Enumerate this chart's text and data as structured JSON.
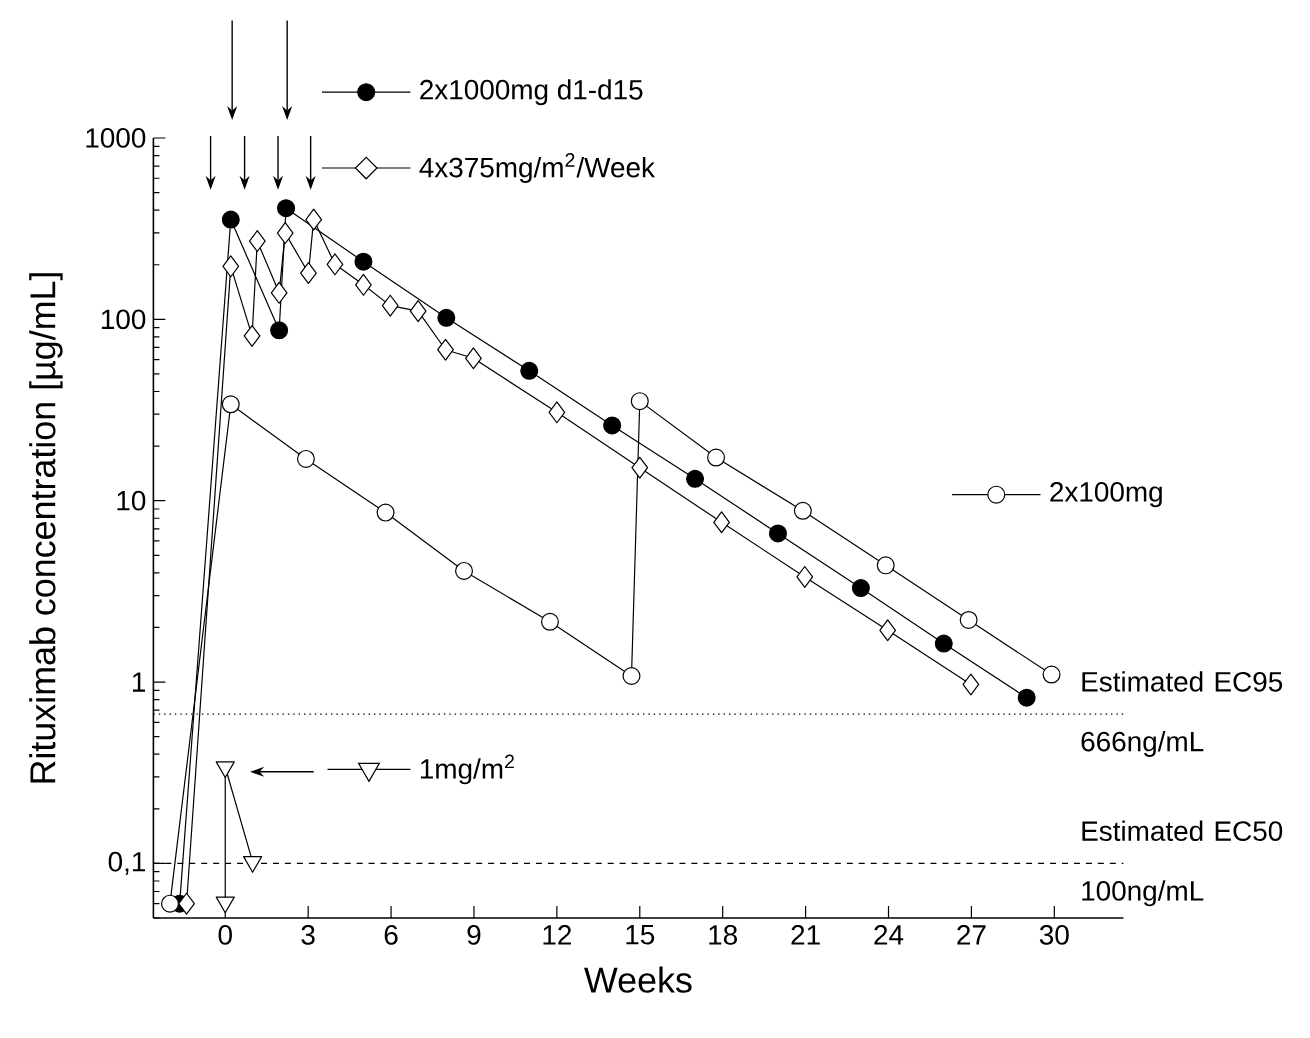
{
  "chart_data": {
    "type": "line",
    "xlabel": "Weeks",
    "ylabel": "Rituximab concentration [µg/mL]",
    "log": "y",
    "xlim": [
      -2.6,
      32.5
    ],
    "xticks": [
      0,
      3,
      6,
      9,
      12,
      15,
      18,
      21,
      24,
      27,
      30
    ],
    "ylim": [
      0.05,
      1000
    ],
    "yticks": [
      {
        "value": 0.1,
        "label": "0,1"
      },
      1,
      10,
      100,
      1000
    ],
    "grid": false,
    "legend": "top",
    "series": [
      {
        "name": "2x1000mg d1-d15",
        "color": "#000000",
        "marker": "circle",
        "x": [
          -1.65,
          0.2,
          1.95,
          2.2,
          5,
          8,
          11,
          14,
          17,
          20,
          23,
          26,
          29
        ],
        "values": [
          0.06,
          355,
          87,
          410,
          208,
          102,
          52,
          26,
          13.2,
          6.6,
          3.3,
          1.63,
          0.82
        ]
      },
      {
        "name": "4x375mg/m$^{2}$/Week",
        "color": "#ffffff",
        "marker": "diamond",
        "x": [
          -1.4,
          0.2,
          0.97,
          1.16,
          1.95,
          2.17,
          3.01,
          3.2,
          3.97,
          5,
          5.97,
          6.98,
          7.97,
          8.98,
          12,
          15,
          17.96,
          20.97,
          23.97,
          26.98
        ],
        "values": [
          0.06,
          196,
          81,
          270,
          140,
          299,
          180,
          355,
          201,
          155,
          119,
          111,
          68,
          61,
          30.7,
          15.2,
          7.6,
          3.8,
          1.93,
          0.97
        ]
      },
      {
        "name": "2x100mg",
        "color": "#ffffff",
        "marker": "circle",
        "x": [
          -2.0,
          0.2,
          2.92,
          5.8,
          8.64,
          11.75,
          14.7,
          15.0,
          17.76,
          20.9,
          23.9,
          26.9,
          29.9
        ],
        "values": [
          0.06,
          34,
          17,
          8.6,
          4.1,
          2.15,
          1.08,
          35.4,
          17.3,
          8.8,
          4.4,
          2.2,
          1.1
        ]
      },
      {
        "name": "1mg/m$^{2}$",
        "color": "#ffffff",
        "marker": "triangle",
        "x": [
          0,
          0,
          0.99
        ],
        "values": [
          0.061,
          0.34,
          0.102
        ]
      }
    ],
    "ref_lines": [
      {
        "axis": "y",
        "value": 0.666,
        "label": "Estimated EC95 666ng/mL",
        "line_style": "dotted"
      },
      {
        "axis": "y",
        "value": 0.1,
        "label": "Estimated EC50 100ng/mL",
        "line_style": "dashed"
      }
    ]
  }
}
